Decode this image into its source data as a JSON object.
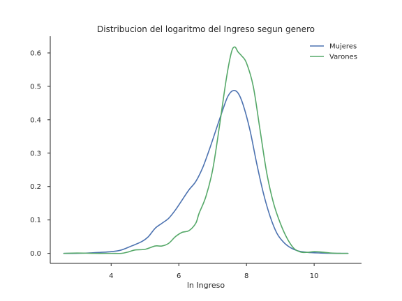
{
  "chart_data": {
    "type": "line",
    "title": "Distribucion del logaritmo del Ingreso segun genero",
    "xlabel": "ln Ingreso",
    "ylabel": "",
    "xlim": [
      2.2,
      11.4
    ],
    "ylim": [
      -0.03,
      0.65
    ],
    "xticks": [
      4,
      6,
      8,
      10
    ],
    "yticks": [
      0.0,
      0.1,
      0.2,
      0.3,
      0.4,
      0.5,
      0.6
    ],
    "xtick_labels": [
      "4",
      "6",
      "8",
      "10"
    ],
    "ytick_labels": [
      "0.0",
      "0.1",
      "0.2",
      "0.3",
      "0.4",
      "0.5",
      "0.6"
    ],
    "grid": false,
    "legend_position": "top-right",
    "series": [
      {
        "name": "Mujeres",
        "color": "#4c72b0",
        "points": [
          [
            2.6,
            0.0
          ],
          [
            3.0,
            0.0
          ],
          [
            3.5,
            0.002
          ],
          [
            4.0,
            0.005
          ],
          [
            4.3,
            0.01
          ],
          [
            4.6,
            0.022
          ],
          [
            4.9,
            0.035
          ],
          [
            5.1,
            0.05
          ],
          [
            5.3,
            0.075
          ],
          [
            5.5,
            0.09
          ],
          [
            5.7,
            0.105
          ],
          [
            5.9,
            0.13
          ],
          [
            6.1,
            0.16
          ],
          [
            6.3,
            0.19
          ],
          [
            6.5,
            0.215
          ],
          [
            6.7,
            0.255
          ],
          [
            6.9,
            0.31
          ],
          [
            7.1,
            0.37
          ],
          [
            7.3,
            0.43
          ],
          [
            7.45,
            0.47
          ],
          [
            7.6,
            0.487
          ],
          [
            7.75,
            0.48
          ],
          [
            7.9,
            0.445
          ],
          [
            8.1,
            0.37
          ],
          [
            8.3,
            0.27
          ],
          [
            8.5,
            0.18
          ],
          [
            8.7,
            0.11
          ],
          [
            8.9,
            0.06
          ],
          [
            9.1,
            0.033
          ],
          [
            9.3,
            0.017
          ],
          [
            9.5,
            0.008
          ],
          [
            9.8,
            0.003
          ],
          [
            10.2,
            0.001
          ],
          [
            10.6,
            0.0
          ],
          [
            11.0,
            0.0
          ]
        ]
      },
      {
        "name": "Varones",
        "color": "#55a868",
        "points": [
          [
            2.6,
            0.0
          ],
          [
            3.0,
            0.001
          ],
          [
            3.5,
            0.0
          ],
          [
            4.0,
            0.0
          ],
          [
            4.3,
            0.0
          ],
          [
            4.5,
            0.004
          ],
          [
            4.7,
            0.01
          ],
          [
            5.0,
            0.012
          ],
          [
            5.3,
            0.022
          ],
          [
            5.5,
            0.022
          ],
          [
            5.7,
            0.03
          ],
          [
            5.9,
            0.05
          ],
          [
            6.1,
            0.063
          ],
          [
            6.3,
            0.068
          ],
          [
            6.5,
            0.09
          ],
          [
            6.6,
            0.12
          ],
          [
            6.8,
            0.17
          ],
          [
            7.0,
            0.25
          ],
          [
            7.2,
            0.38
          ],
          [
            7.4,
            0.52
          ],
          [
            7.55,
            0.6
          ],
          [
            7.65,
            0.618
          ],
          [
            7.75,
            0.603
          ],
          [
            7.85,
            0.592
          ],
          [
            8.0,
            0.57
          ],
          [
            8.2,
            0.5
          ],
          [
            8.4,
            0.37
          ],
          [
            8.6,
            0.24
          ],
          [
            8.8,
            0.15
          ],
          [
            9.0,
            0.09
          ],
          [
            9.2,
            0.045
          ],
          [
            9.4,
            0.015
          ],
          [
            9.6,
            0.004
          ],
          [
            9.8,
            0.003
          ],
          [
            10.0,
            0.005
          ],
          [
            10.2,
            0.004
          ],
          [
            10.5,
            0.001
          ],
          [
            10.8,
            0.0
          ],
          [
            11.0,
            0.0
          ]
        ]
      }
    ]
  }
}
